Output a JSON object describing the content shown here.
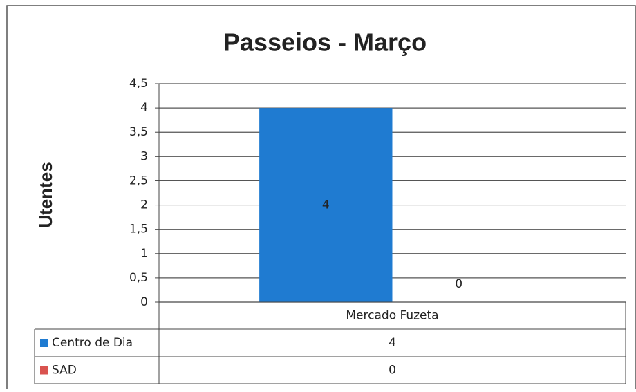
{
  "chart_data": {
    "type": "bar",
    "title": "Passeios - Março",
    "y_label": "Utentes",
    "categories": [
      "Mercado Fuzeta"
    ],
    "series": [
      {
        "name": "Centro de Dia",
        "color": "#1f7bd1",
        "values": [
          4
        ]
      },
      {
        "name": "SAD",
        "color": "#d9534f",
        "values": [
          0
        ]
      }
    ],
    "ylim": [
      0,
      4.5
    ],
    "yticks": [
      0,
      {
        "value": 0.5,
        "label": "0,5"
      },
      1,
      {
        "value": 1.5,
        "label": "1,5"
      },
      2,
      {
        "value": 2.5,
        "label": "2,5"
      },
      3,
      {
        "value": 3.5,
        "label": "3,5"
      },
      4,
      {
        "value": 4.5,
        "label": "4,5"
      }
    ],
    "grid": true,
    "data_table": true
  }
}
